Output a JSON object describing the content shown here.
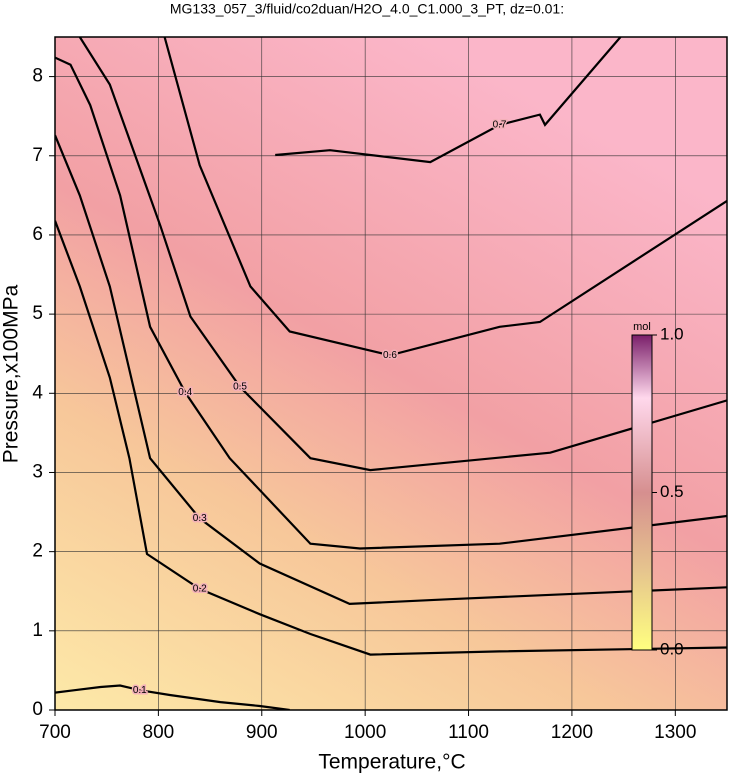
{
  "chart_data": {
    "type": "contour",
    "title": "MG133_057_3/fluid/co2duan/H2O_4.0_C1.000_3_PT, dz=0.01:",
    "x_label": "Temperature,°C",
    "y_label": "Pressure,x100MPa",
    "xlim": [
      700,
      1350
    ],
    "ylim": [
      0,
      8.5
    ],
    "xticks": [
      700,
      800,
      900,
      1000,
      1100,
      1200,
      1300
    ],
    "yticks": [
      0,
      1,
      2,
      3,
      4,
      5,
      6,
      7,
      8
    ],
    "grid": true,
    "series": [
      {
        "level": 0.1,
        "color": "#000000",
        "x": [
          700,
          719,
          744,
          763,
          782,
          811,
          860,
          898,
          927
        ],
        "y": [
          0.22,
          0.25,
          0.29,
          0.31,
          0.25,
          0.19,
          0.1,
          0.05,
          0.0
        ]
      },
      {
        "level": 0.2,
        "color": "#000000",
        "x": [
          700,
          724,
          753,
          772,
          789,
          840,
          898,
          947,
          1005,
          1130,
          1350
        ],
        "y": [
          6.18,
          5.35,
          4.2,
          3.18,
          1.97,
          1.53,
          1.21,
          0.96,
          0.7,
          0.74,
          0.79
        ]
      },
      {
        "level": 0.3,
        "color": "#000000",
        "x": [
          700,
          724,
          753,
          792,
          840,
          898,
          985,
          1082,
          1350
        ],
        "y": [
          7.26,
          6.5,
          5.35,
          3.18,
          2.42,
          1.85,
          1.34,
          1.4,
          1.55
        ]
      },
      {
        "level": 0.4,
        "color": "#000000",
        "x": [
          700,
          715,
          734,
          763,
          792,
          826,
          869,
          947,
          995,
          1130,
          1350
        ],
        "y": [
          8.24,
          8.15,
          7.64,
          6.5,
          4.84,
          4.01,
          3.18,
          2.1,
          2.04,
          2.1,
          2.45
        ]
      },
      {
        "level": 0.5,
        "color": "#000000",
        "x": [
          724,
          753,
          802,
          831,
          879,
          947,
          1005,
          1179,
          1350
        ],
        "y": [
          8.5,
          7.9,
          6.11,
          4.97,
          4.08,
          3.18,
          3.03,
          3.25,
          3.91
        ]
      },
      {
        "level": 0.6,
        "color": "#000000",
        "x": [
          806,
          840,
          889,
          927,
          1024,
          1130,
          1169,
          1350
        ],
        "y": [
          8.5,
          6.88,
          5.35,
          4.78,
          4.48,
          4.84,
          4.9,
          6.43
        ]
      },
      {
        "level": 0.7,
        "color": "#000000",
        "x": [
          913,
          966,
          1063,
          1130,
          1169,
          1174,
          1247
        ],
        "y": [
          7.01,
          7.07,
          6.92,
          7.39,
          7.52,
          7.39,
          8.5
        ]
      }
    ],
    "colorbar": {
      "unit": "mol",
      "lim": [
        0,
        1
      ],
      "ticks": [
        {
          "value": 0,
          "label": "0.0"
        },
        0.5,
        {
          "value": 1,
          "label": "1.0"
        }
      ]
    }
  }
}
